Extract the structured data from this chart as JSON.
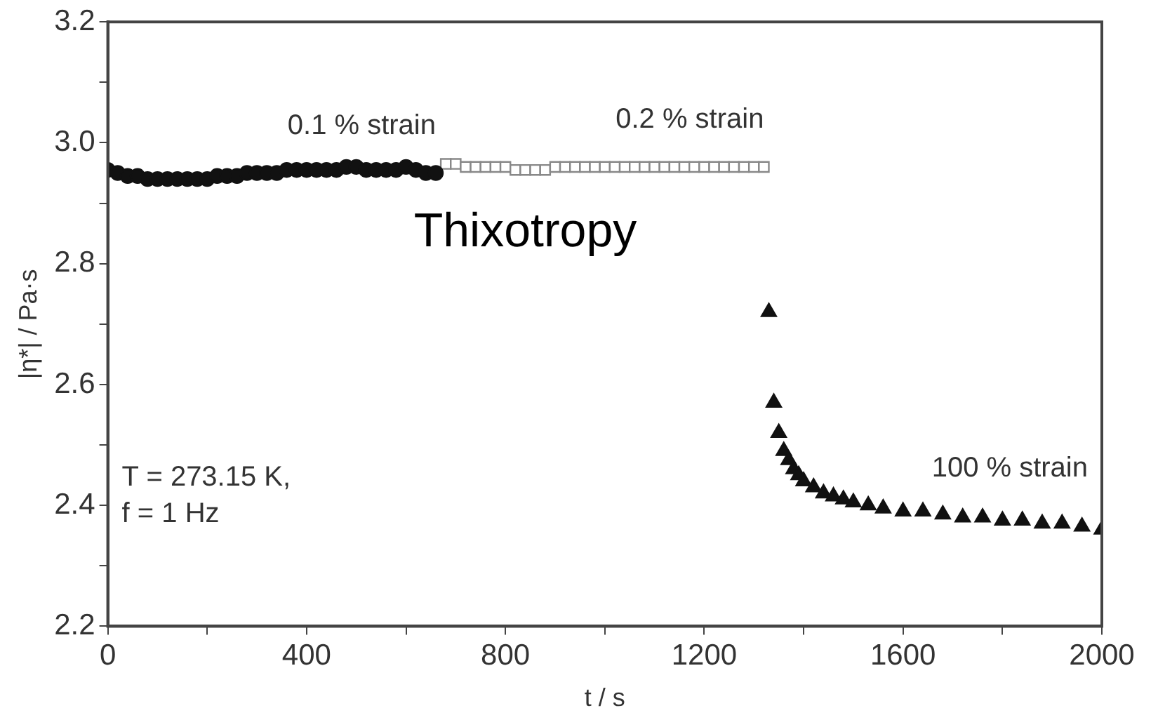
{
  "chart_data": {
    "type": "scatter",
    "xlabel": "t / s",
    "ylabel": "|η*| / Pa·s",
    "xlim": [
      0,
      2000
    ],
    "ylim": [
      2.2,
      3.2
    ],
    "xticks": [
      0,
      {
        "value": 200,
        "label": null
      },
      400,
      {
        "value": 600,
        "label": null
      },
      800,
      {
        "value": 1000,
        "label": null
      },
      1200,
      {
        "value": 1400,
        "label": null
      },
      1600,
      {
        "value": 1800,
        "label": null
      },
      2000
    ],
    "yticks": [
      2.2,
      {
        "value": 2.3,
        "label": null
      },
      2.4,
      {
        "value": 2.5,
        "label": null
      },
      2.6,
      {
        "value": 2.7,
        "label": null
      },
      2.8,
      {
        "value": 2.9,
        "label": null
      },
      {
        "value": 3.0,
        "label": "3.0"
      },
      {
        "value": 3.1,
        "label": null
      },
      3.2
    ],
    "grid": false,
    "legend": false,
    "annotations": [
      "Thixotropy",
      "T = 273.15 K,",
      "f = 1 Hz"
    ],
    "series": [
      {
        "name": "0.1 % strain",
        "color": "#111111",
        "marker": "circle",
        "x": [
          0,
          20,
          40,
          60,
          80,
          100,
          120,
          140,
          160,
          180,
          200,
          220,
          240,
          260,
          280,
          300,
          320,
          340,
          360,
          380,
          400,
          420,
          440,
          460,
          480,
          500,
          520,
          540,
          560,
          580,
          600,
          620,
          640,
          660
        ],
        "values": [
          2.955,
          2.95,
          2.945,
          2.945,
          2.94,
          2.94,
          2.94,
          2.94,
          2.94,
          2.94,
          2.94,
          2.945,
          2.945,
          2.945,
          2.95,
          2.95,
          2.95,
          2.95,
          2.955,
          2.955,
          2.955,
          2.955,
          2.955,
          2.955,
          2.96,
          2.96,
          2.955,
          2.955,
          2.955,
          2.955,
          2.96,
          2.955,
          2.95,
          2.95
        ]
      },
      {
        "name": "0.2 % strain",
        "color": "#888888",
        "marker": "square",
        "x": [
          680,
          700,
          720,
          740,
          760,
          780,
          800,
          820,
          840,
          860,
          880,
          900,
          920,
          940,
          960,
          980,
          1000,
          1020,
          1040,
          1060,
          1080,
          1100,
          1120,
          1140,
          1160,
          1180,
          1200,
          1220,
          1240,
          1260,
          1280,
          1300,
          1320
        ],
        "values": [
          2.965,
          2.965,
          2.96,
          2.96,
          2.96,
          2.96,
          2.96,
          2.955,
          2.955,
          2.955,
          2.955,
          2.96,
          2.96,
          2.96,
          2.96,
          2.96,
          2.96,
          2.96,
          2.96,
          2.96,
          2.96,
          2.96,
          2.96,
          2.96,
          2.96,
          2.96,
          2.96,
          2.96,
          2.96,
          2.96,
          2.96,
          2.96,
          2.96
        ]
      },
      {
        "name": "100 % strain",
        "color": "#111111",
        "marker": "triangle",
        "x": [
          1330,
          1340,
          1350,
          1360,
          1370,
          1380,
          1390,
          1400,
          1420,
          1440,
          1460,
          1480,
          1500,
          1530,
          1560,
          1600,
          1640,
          1680,
          1720,
          1760,
          1800,
          1840,
          1880,
          1920,
          1960,
          2000
        ],
        "values": [
          2.72,
          2.57,
          2.52,
          2.49,
          2.475,
          2.46,
          2.45,
          2.44,
          2.43,
          2.42,
          2.415,
          2.41,
          2.405,
          2.4,
          2.395,
          2.39,
          2.39,
          2.385,
          2.38,
          2.38,
          2.375,
          2.375,
          2.37,
          2.37,
          2.365,
          2.36
        ]
      }
    ]
  }
}
